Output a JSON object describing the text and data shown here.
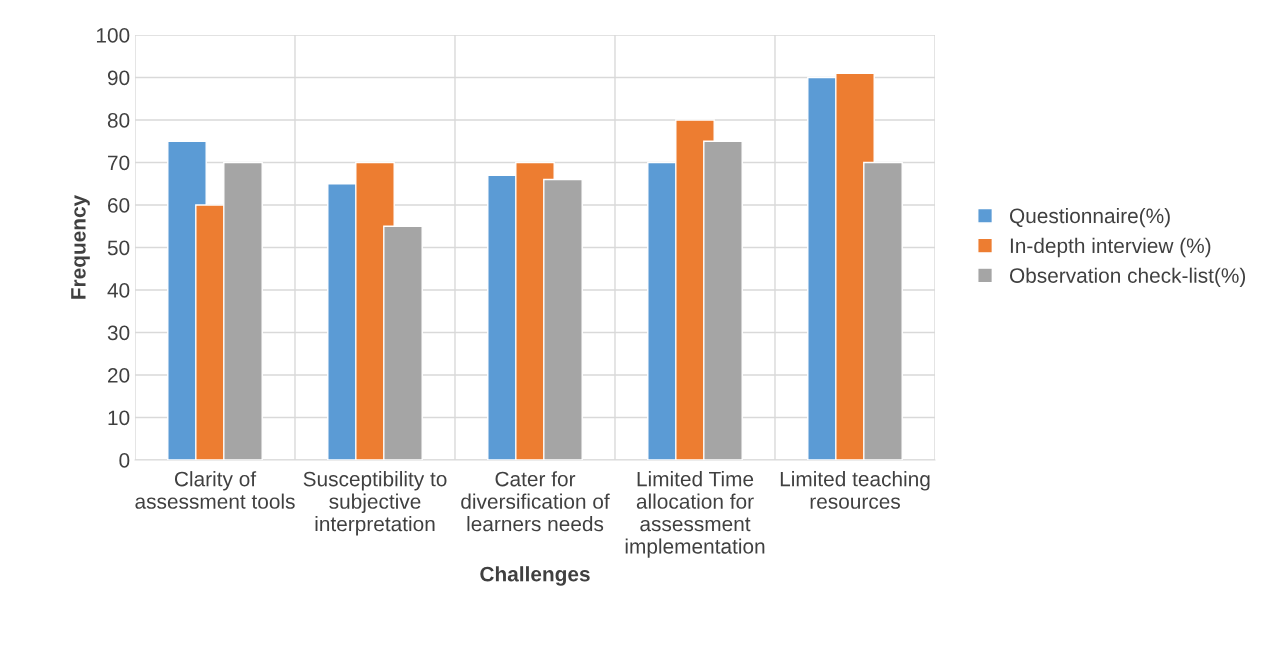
{
  "chart_data": {
    "type": "bar",
    "xlabel": "Challenges",
    "ylabel": "Frequency",
    "categories": [
      "Clarity of assessment tools",
      "Susceptibility to subjective interpretation",
      "Cater for diversification of learners needs",
      "Limited Time allocation for assessment implementation",
      "Limited teaching resources"
    ],
    "series": [
      {
        "name": "Questionnaire(%)",
        "color": "#5b9bd5",
        "values": [
          75,
          65,
          67,
          70,
          90
        ]
      },
      {
        "name": "In-depth interview (%)",
        "color": "#ed7d31",
        "values": [
          60,
          70,
          70,
          80,
          91
        ]
      },
      {
        "name": "Observation check-list(%)",
        "color": "#a5a5a5",
        "values": [
          70,
          55,
          66,
          75,
          70
        ]
      }
    ],
    "ylim": [
      0,
      100
    ],
    "yticks": [
      0,
      10,
      20,
      30,
      40,
      50,
      60,
      70,
      80,
      90,
      100
    ],
    "grid": true,
    "legend": "right"
  }
}
